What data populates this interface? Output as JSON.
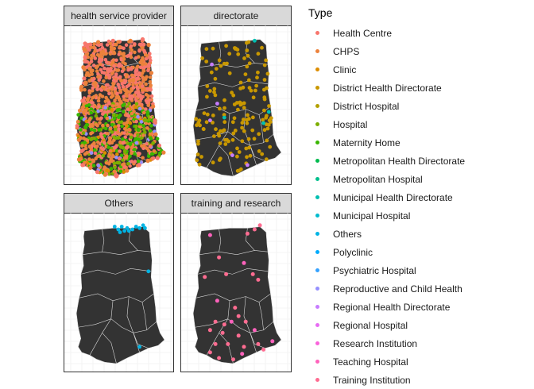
{
  "panels": [
    {
      "title": "health service provider"
    },
    {
      "title": "directorate"
    },
    {
      "title": "Others"
    },
    {
      "title": "training and research"
    }
  ],
  "legend": {
    "title": "Type",
    "items": [
      {
        "label": "Health Centre",
        "color": "#F8766D"
      },
      {
        "label": "CHPS",
        "color": "#EC823C"
      },
      {
        "label": "Clinic",
        "color": "#DD8D00"
      },
      {
        "label": "District Health Directorate",
        "color": "#C99800"
      },
      {
        "label": "District Hospital",
        "color": "#B3A000"
      },
      {
        "label": "Hospital",
        "color": "#7CAE00"
      },
      {
        "label": "Maternity Home",
        "color": "#39B600"
      },
      {
        "label": "Metropolitan Health Directorate",
        "color": "#00BB4E"
      },
      {
        "label": "Metropolitan Hospital",
        "color": "#00C08D"
      },
      {
        "label": "Municipal Health Directorate",
        "color": "#00BFB1"
      },
      {
        "label": "Municipal Hospital",
        "color": "#00BBCE"
      },
      {
        "label": "Others",
        "color": "#00B4E4"
      },
      {
        "label": "Polyclinic",
        "color": "#00ABFD"
      },
      {
        "label": "Psychiatric Hospital",
        "color": "#35A2FF"
      },
      {
        "label": "Reproductive and Child Health",
        "color": "#9590FF"
      },
      {
        "label": "Regional Health Directorate",
        "color": "#C77CFF"
      },
      {
        "label": "Regional Hospital",
        "color": "#E76BF3"
      },
      {
        "label": "Research Institution",
        "color": "#FA62DB"
      },
      {
        "label": "Teaching Hospital",
        "color": "#FF62BC"
      },
      {
        "label": "Training Institution",
        "color": "#FF6C91"
      }
    ]
  },
  "map": {
    "land_color": "#333333",
    "border_color": "#d9d9d9",
    "grid_color": "#ebebeb"
  }
}
